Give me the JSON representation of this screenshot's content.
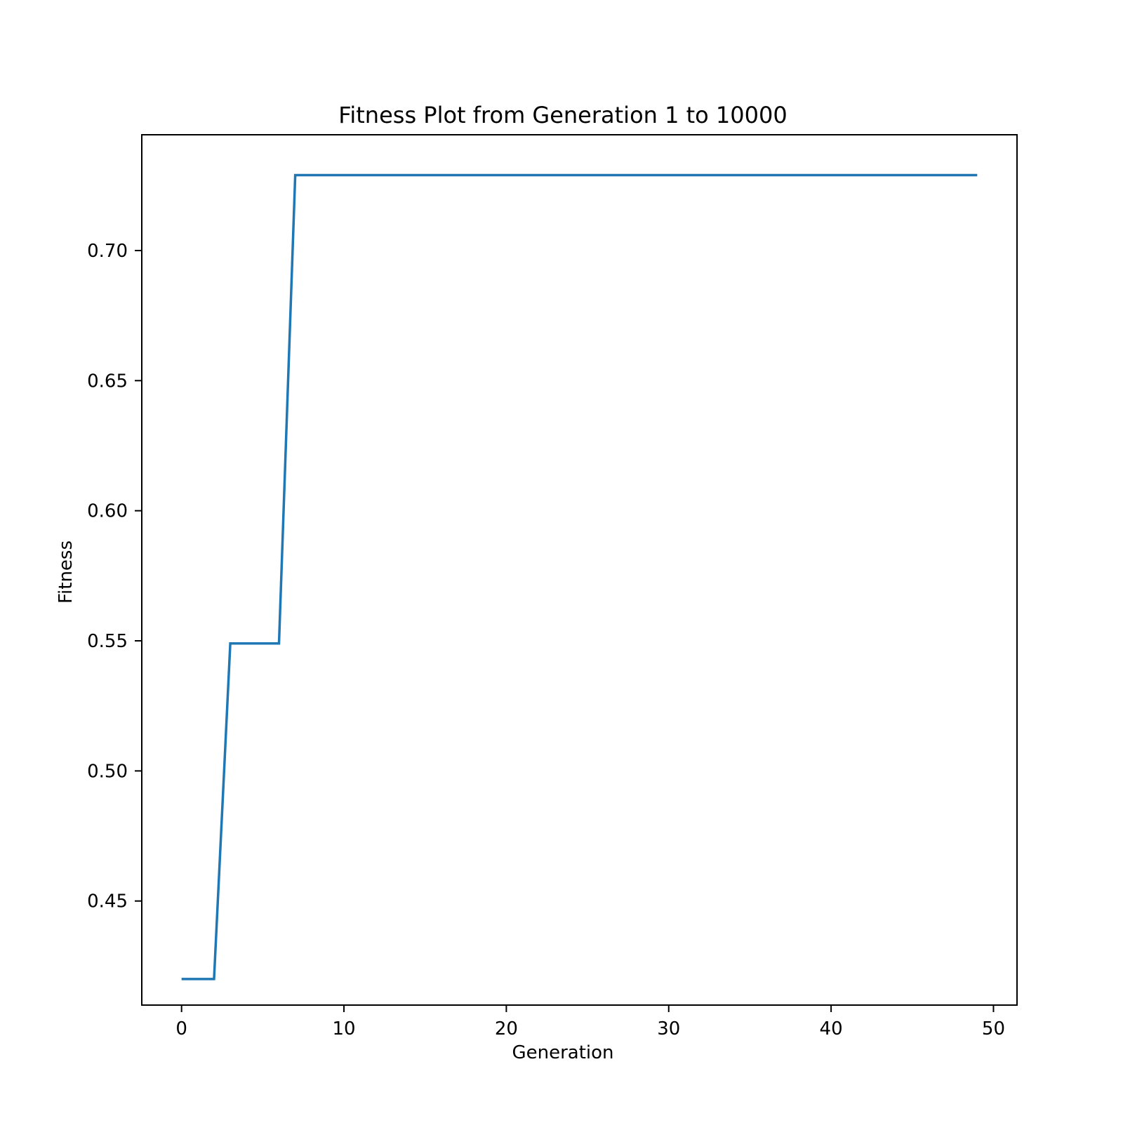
{
  "chart_data": {
    "type": "line",
    "title": "Fitness Plot from Generation 1 to 10000",
    "xlabel": "Generation",
    "ylabel": "Fitness",
    "xlim": [
      -2.45,
      51.45
    ],
    "ylim": [
      0.41,
      0.7445
    ],
    "xticks": [
      0,
      10,
      20,
      30,
      40,
      50
    ],
    "xtick_labels": [
      "0",
      "10",
      "20",
      "30",
      "40",
      "50"
    ],
    "yticks": [
      0.45,
      0.5,
      0.55,
      0.6,
      0.65,
      0.7
    ],
    "ytick_labels": [
      "0.45",
      "0.50",
      "0.55",
      "0.60",
      "0.65",
      "0.70"
    ],
    "grid": false,
    "series": [
      {
        "color": "#1f77b4",
        "x": [
          0,
          1,
          2,
          3,
          4,
          5,
          6,
          7,
          8,
          9,
          10,
          11,
          12,
          13,
          14,
          15,
          16,
          17,
          18,
          19,
          20,
          21,
          22,
          23,
          24,
          25,
          26,
          27,
          28,
          29,
          30,
          31,
          32,
          33,
          34,
          35,
          36,
          37,
          38,
          39,
          40,
          41,
          42,
          43,
          44,
          45,
          46,
          47,
          48,
          49
        ],
        "y": [
          0.42,
          0.42,
          0.42,
          0.549,
          0.549,
          0.549,
          0.549,
          0.729,
          0.729,
          0.729,
          0.729,
          0.729,
          0.729,
          0.729,
          0.729,
          0.729,
          0.729,
          0.729,
          0.729,
          0.729,
          0.729,
          0.729,
          0.729,
          0.729,
          0.729,
          0.729,
          0.729,
          0.729,
          0.729,
          0.729,
          0.729,
          0.729,
          0.729,
          0.729,
          0.729,
          0.729,
          0.729,
          0.729,
          0.729,
          0.729,
          0.729,
          0.729,
          0.729,
          0.729,
          0.729,
          0.729,
          0.729,
          0.729,
          0.729,
          0.729
        ]
      }
    ]
  }
}
